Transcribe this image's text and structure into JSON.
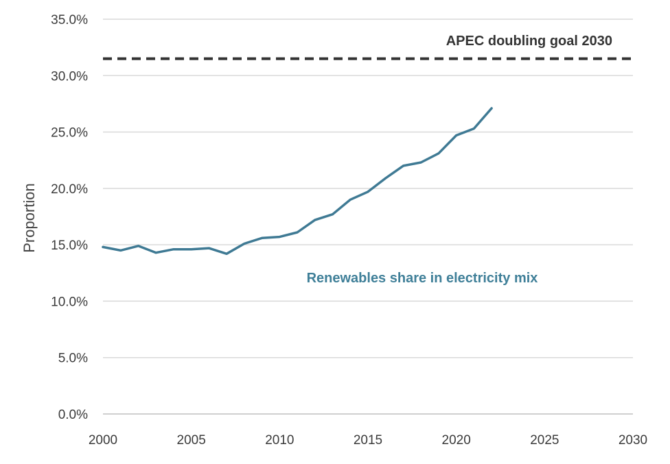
{
  "chart_data": {
    "type": "line",
    "title": "",
    "xlabel": "",
    "ylabel": "Proportion",
    "xlim": [
      2000,
      2030
    ],
    "ylim": [
      0,
      35
    ],
    "x_ticks": [
      2000,
      2005,
      2010,
      2015,
      2020,
      2025,
      2030
    ],
    "y_ticks": [
      0,
      5,
      10,
      15,
      20,
      25,
      30,
      35
    ],
    "x_tick_labels": [
      "2000",
      "2005",
      "2010",
      "2015",
      "2020",
      "2025",
      "2030"
    ],
    "y_tick_labels": [
      "0.0%",
      "5.0%",
      "10.0%",
      "15.0%",
      "20.0%",
      "25.0%",
      "30.0%",
      "35.0%"
    ],
    "grid": true,
    "series": [
      {
        "name": "Renewables share in electricity mix",
        "color": "#3f7a94",
        "x": [
          2000,
          2001,
          2002,
          2003,
          2004,
          2005,
          2006,
          2007,
          2008,
          2009,
          2010,
          2011,
          2012,
          2013,
          2014,
          2015,
          2016,
          2017,
          2018,
          2019,
          2020,
          2021,
          2022
        ],
        "values": [
          14.8,
          14.5,
          14.9,
          14.3,
          14.6,
          14.6,
          14.7,
          14.2,
          15.1,
          15.6,
          15.7,
          16.1,
          17.2,
          17.7,
          19.0,
          19.7,
          20.9,
          22.0,
          22.3,
          23.1,
          24.7,
          25.3,
          27.1
        ]
      }
    ],
    "reference_lines": [
      {
        "name": "APEC doubling goal 2030",
        "value": 31.5,
        "style": "dashed",
        "color": "#333333"
      }
    ],
    "annotations": [
      {
        "text": "APEC doubling goal 2030",
        "target": "reference_line"
      },
      {
        "text": "Renewables share in electricity mix",
        "target": "series"
      }
    ]
  }
}
